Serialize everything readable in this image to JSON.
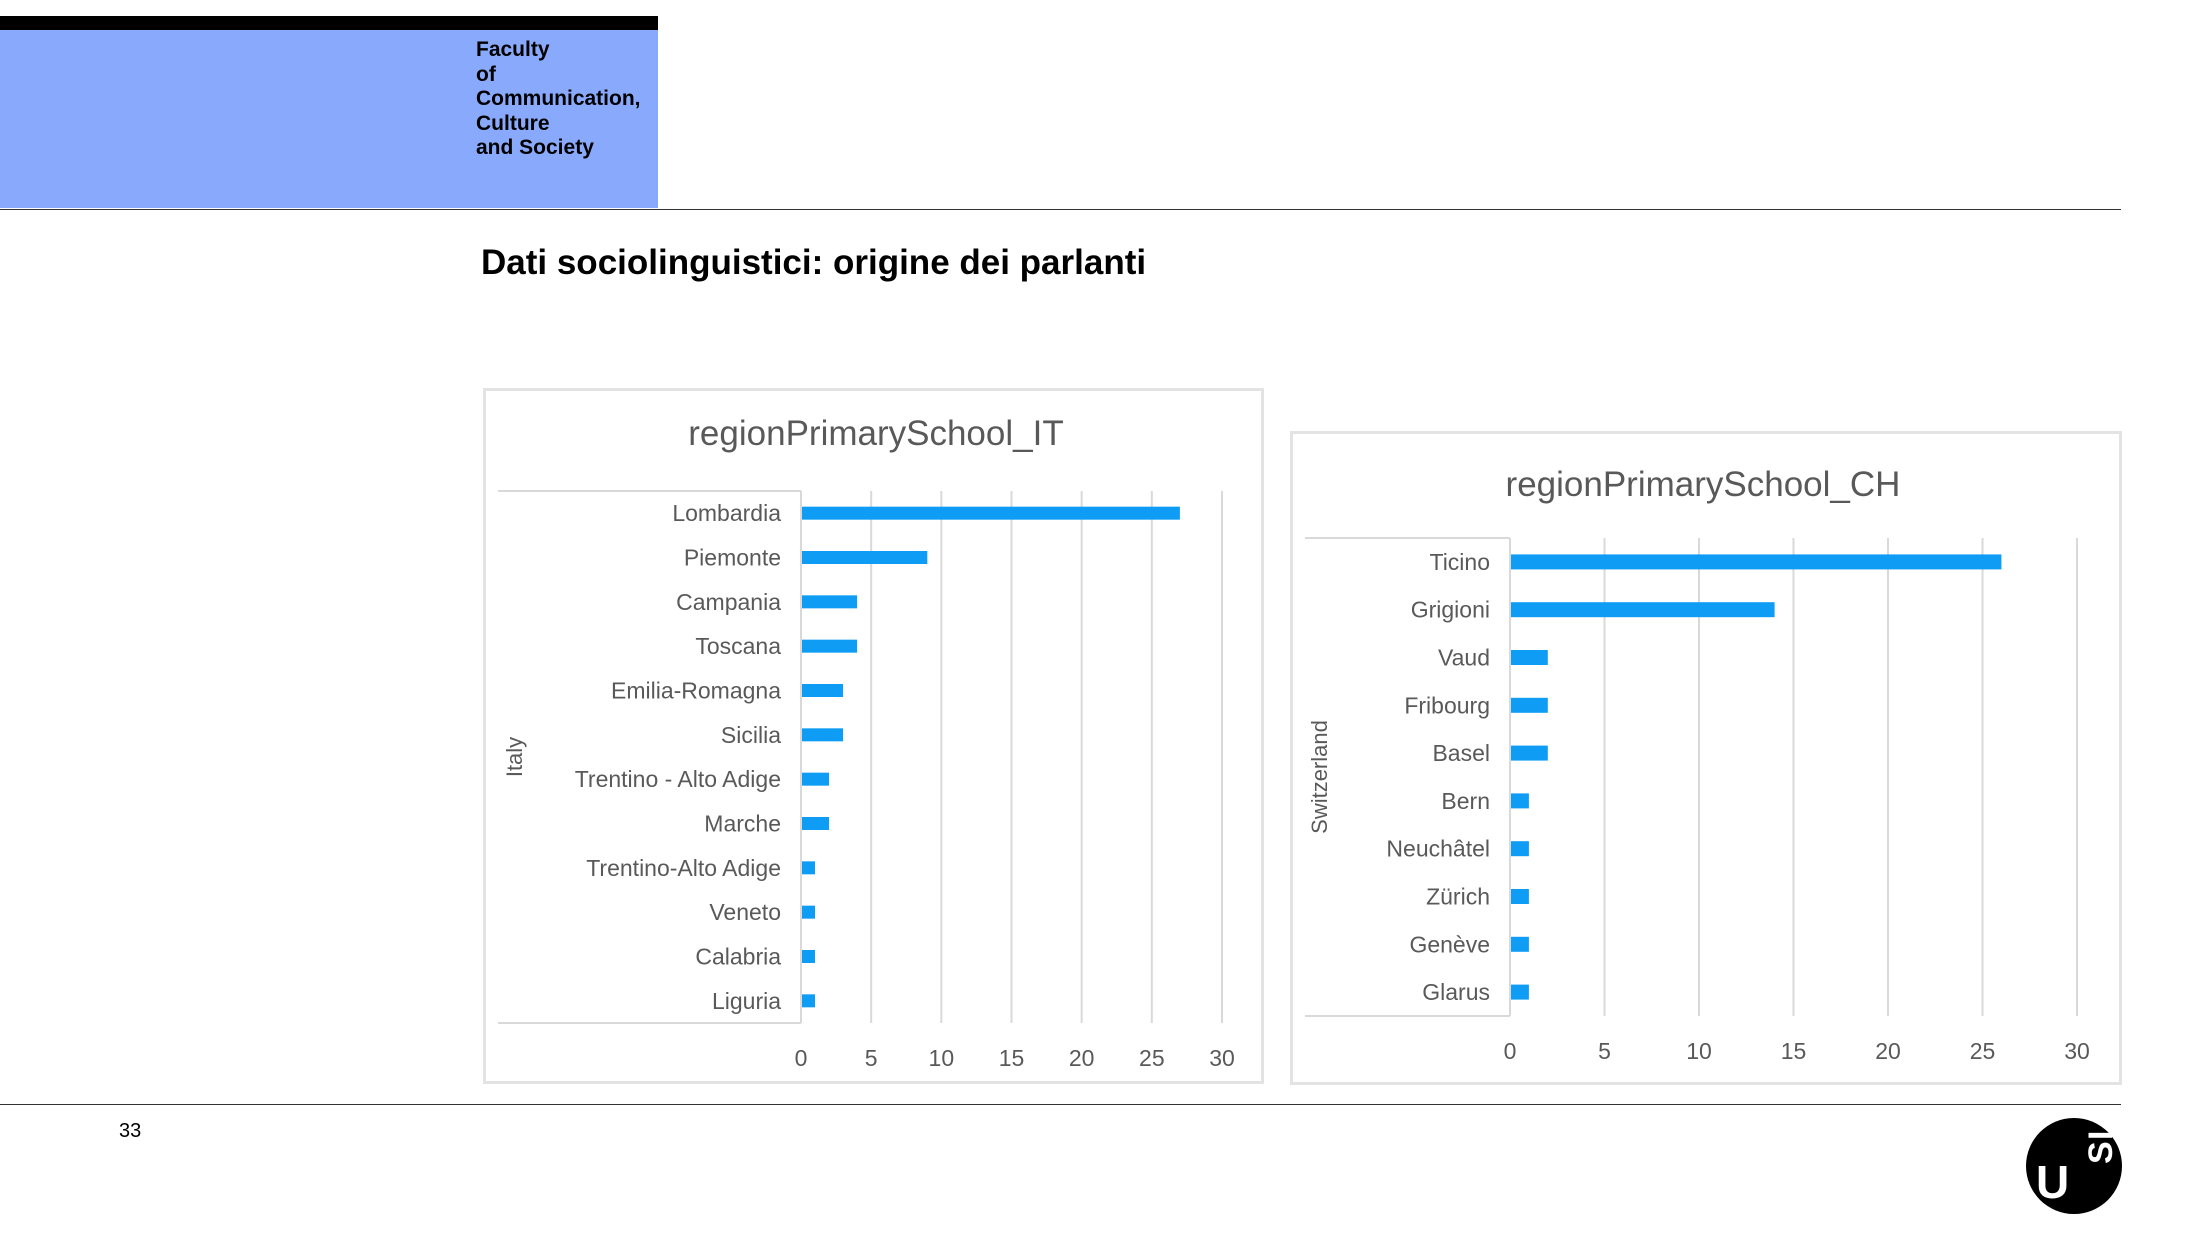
{
  "header": {
    "faculty_lines": [
      "Faculty",
      "of",
      "Communication,",
      "Culture",
      "and Society"
    ]
  },
  "slide": {
    "title": "Dati sociolinguistici: origine dei parlanti",
    "page_number": "33"
  },
  "logo": {
    "letters": [
      "U",
      "S",
      "I"
    ]
  },
  "colors": {
    "bar": "#0f9cf5",
    "faculty_bg": "#89aafc",
    "grid": "#d9d9d9",
    "label": "#595959"
  },
  "chart_data": [
    {
      "type": "bar",
      "orientation": "horizontal",
      "title": "regionPrimarySchool_IT",
      "group_label": "Italy",
      "categories": [
        "Lombardia",
        "Piemonte",
        "Campania",
        "Toscana",
        "Emilia-Romagna",
        "Sicilia",
        "Trentino - Alto Adige",
        "Marche",
        "Trentino-Alto Adige",
        "Veneto",
        "Calabria",
        "Liguria"
      ],
      "values": [
        27,
        9,
        4,
        4,
        3,
        3,
        2,
        2,
        1,
        1,
        1,
        1
      ],
      "xlim": [
        0,
        30
      ],
      "xticks": [
        0,
        5,
        10,
        15,
        20,
        25,
        30
      ],
      "grid": true
    },
    {
      "type": "bar",
      "orientation": "horizontal",
      "title": "regionPrimarySchool_CH",
      "group_label": "Switzerland",
      "categories": [
        "Ticino",
        "Grigioni",
        "Vaud",
        "Fribourg",
        "Basel",
        "Bern",
        "Neuchâtel",
        "Zürich",
        "Genève",
        "Glarus"
      ],
      "values": [
        26,
        14,
        2,
        2,
        2,
        1,
        1,
        1,
        1,
        1
      ],
      "xlim": [
        0,
        30
      ],
      "xticks": [
        0,
        5,
        10,
        15,
        20,
        25,
        30
      ],
      "grid": true
    }
  ]
}
